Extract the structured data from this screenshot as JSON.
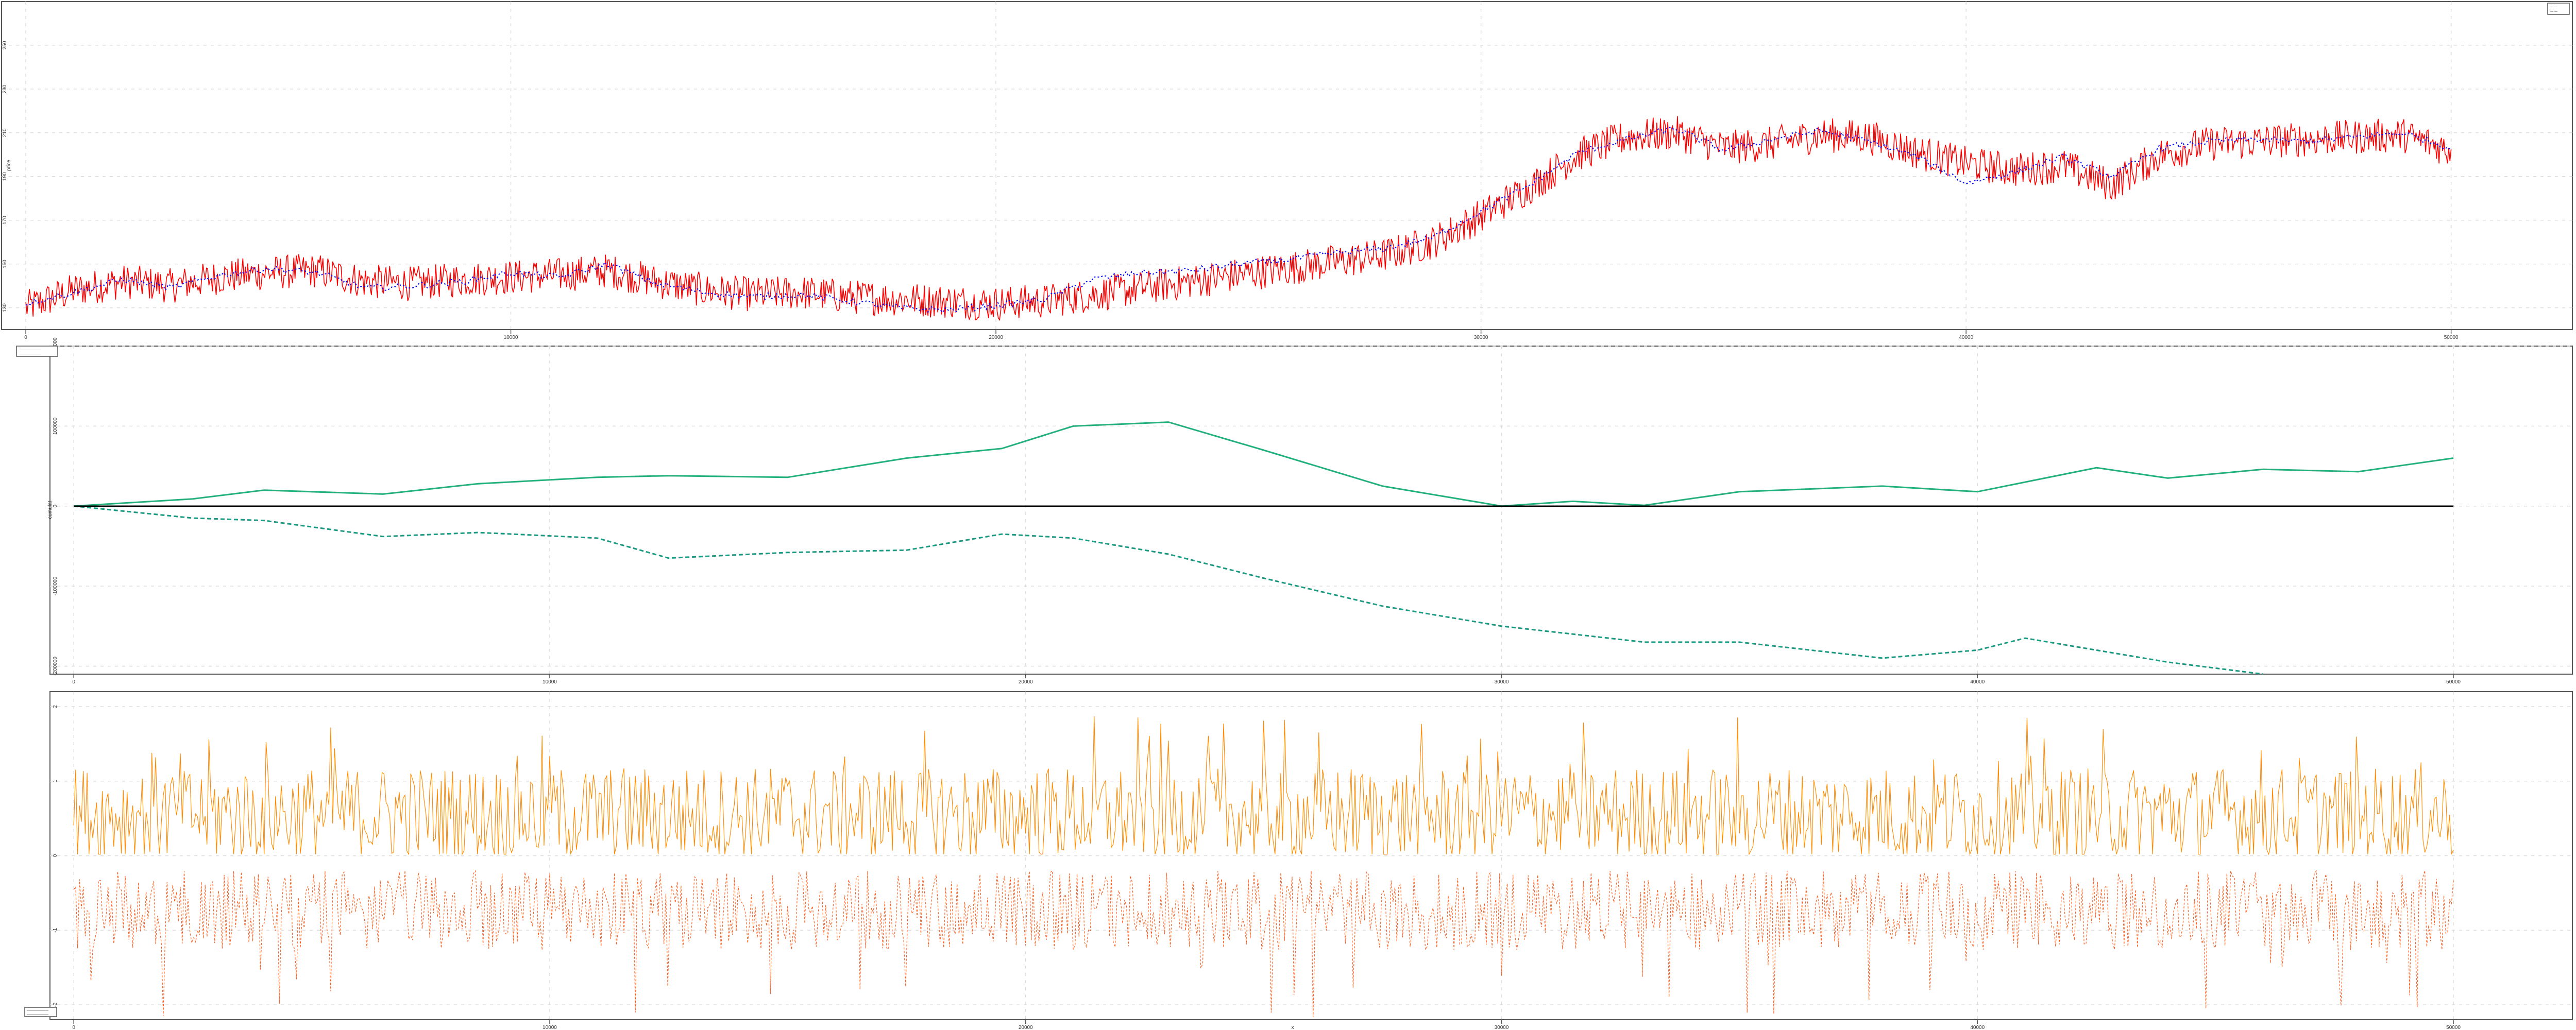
{
  "chart_data": [
    {
      "type": "line",
      "panel": "price",
      "title": "",
      "xlabel": "",
      "ylabel": "price",
      "xlim": [
        -500,
        52500
      ],
      "ylim": [
        120,
        270
      ],
      "x_ticks": [
        0,
        10000,
        20000,
        30000,
        40000,
        50000
      ],
      "y_ticks": [
        130,
        150,
        170,
        190,
        210,
        230,
        250
      ],
      "legend": {
        "placement": "top-right",
        "entries": [
          "— —",
          "— —"
        ]
      },
      "series": [
        {
          "color": "#ff0000",
          "style": "solid-noisy",
          "x": [
            0,
            1000,
            2000,
            3000,
            4000,
            5000,
            6000,
            7000,
            8000,
            9000,
            10000,
            11000,
            12000,
            13000,
            14000,
            15000,
            16000,
            17000,
            18000,
            19000,
            20000,
            21000,
            22000,
            23000,
            24000,
            25000,
            26000,
            27000,
            28000,
            29000,
            30000,
            31000,
            32000,
            33000,
            34000,
            35000,
            36000,
            37000,
            38000,
            39000,
            40000,
            41000,
            42000,
            43000,
            44000,
            45000,
            46000,
            47000,
            48000,
            49000,
            50000
          ],
          "values": [
            130,
            138,
            142,
            140,
            144,
            146,
            147,
            142,
            141,
            143,
            144,
            145,
            147,
            142,
            138,
            136,
            137,
            135,
            134,
            133,
            132,
            133,
            136,
            139,
            142,
            145,
            148,
            151,
            154,
            160,
            172,
            185,
            200,
            208,
            210,
            203,
            205,
            209,
            208,
            201,
            196,
            193,
            195,
            186,
            200,
            205,
            206,
            207,
            208,
            209,
            202
          ]
        },
        {
          "color": "#0000ff",
          "style": "dotted",
          "x": [
            0,
            1000,
            2000,
            3000,
            4000,
            5000,
            6000,
            7000,
            8000,
            9000,
            10000,
            11000,
            12000,
            13000,
            14000,
            15000,
            16000,
            17000,
            18000,
            19000,
            20000,
            21000,
            22000,
            23000,
            24000,
            25000,
            26000,
            27000,
            28000,
            29000,
            30000,
            31000,
            32000,
            33000,
            34000,
            35000,
            36000,
            37000,
            38000,
            39000,
            40000,
            41000,
            42000,
            43000,
            44000,
            45000,
            46000,
            47000,
            48000,
            49000,
            50000
          ],
          "values": [
            132,
            137,
            143,
            139,
            145,
            148,
            146,
            139,
            140,
            142,
            146,
            144,
            150,
            141,
            137,
            135,
            136,
            133,
            130,
            129,
            131,
            134,
            143,
            146,
            147,
            150,
            152,
            155,
            157,
            162,
            174,
            186,
            201,
            207,
            212,
            202,
            207,
            211,
            206,
            199,
            187,
            192,
            199,
            190,
            203,
            206,
            207,
            206,
            208,
            210,
            203
          ]
        }
      ]
    },
    {
      "type": "line",
      "panel": "cumulative",
      "title": "",
      "xlabel": "",
      "ylabel": "cumulat",
      "xlim": [
        -500,
        52500
      ],
      "ylim": [
        -210000,
        200000
      ],
      "x_ticks": [
        0,
        10000,
        20000,
        30000,
        40000,
        50000
      ],
      "y_ticks": [
        -200000,
        -100000,
        0,
        100000,
        200000
      ],
      "legend": {
        "placement": "top-left",
        "entries": [
          "———————",
          "———————"
        ]
      },
      "series": [
        {
          "color": "#22b07d",
          "style": "solid",
          "x": [
            0,
            2500,
            4000,
            6500,
            8500,
            11000,
            12500,
            15000,
            17500,
            19500,
            21000,
            23000,
            25000,
            27500,
            30000,
            31500,
            33000,
            35000,
            38000,
            40000,
            41000,
            42500,
            44000,
            46000,
            48000,
            50000
          ],
          "values": [
            0,
            9000,
            20000,
            15000,
            28000,
            36000,
            38000,
            36000,
            60000,
            72000,
            100000,
            105000,
            70000,
            25000,
            0,
            6000,
            1000,
            18000,
            25000,
            18000,
            30000,
            48000,
            35000,
            46000,
            43000,
            60000
          ]
        },
        {
          "color": "#1a9a80",
          "style": "dashed",
          "x": [
            0,
            2500,
            4000,
            6500,
            8500,
            11000,
            12500,
            15000,
            17500,
            19500,
            21000,
            23000,
            25000,
            27500,
            30000,
            31500,
            33000,
            35000,
            38000,
            40000,
            41000,
            42500,
            44000,
            46000
          ],
          "values": [
            0,
            -15000,
            -18000,
            -38000,
            -33000,
            -40000,
            -65000,
            -58000,
            -55000,
            -35000,
            -40000,
            -60000,
            -90000,
            -125000,
            -150000,
            -160000,
            -170000,
            -170000,
            -190000,
            -180000,
            -165000,
            -180000,
            -195000,
            -210000
          ]
        },
        {
          "color": "#000000",
          "style": "solid",
          "x": [
            0,
            50000
          ],
          "values": [
            0,
            0
          ]
        }
      ]
    },
    {
      "type": "line",
      "panel": "signals",
      "title": "",
      "xlabel": "x",
      "ylabel": "",
      "xlim": [
        -500,
        52500
      ],
      "ylim": [
        -2.2,
        2.2
      ],
      "x_ticks": [
        0,
        10000,
        20000,
        30000,
        40000,
        50000
      ],
      "y_ticks": [
        -2,
        -1,
        0,
        1,
        2
      ],
      "legend": {
        "placement": "bottom-left",
        "entries": [
          "———————",
          "———————"
        ]
      },
      "series": [
        {
          "color": "#ff8c00",
          "style": "solid-spiky",
          "baseline": 0.3,
          "range": [
            0.02,
            1.9
          ]
        },
        {
          "color": "#ff6020",
          "style": "dashed-spiky",
          "baseline": -0.6,
          "range": [
            -2.2,
            -0.02
          ]
        }
      ]
    }
  ]
}
